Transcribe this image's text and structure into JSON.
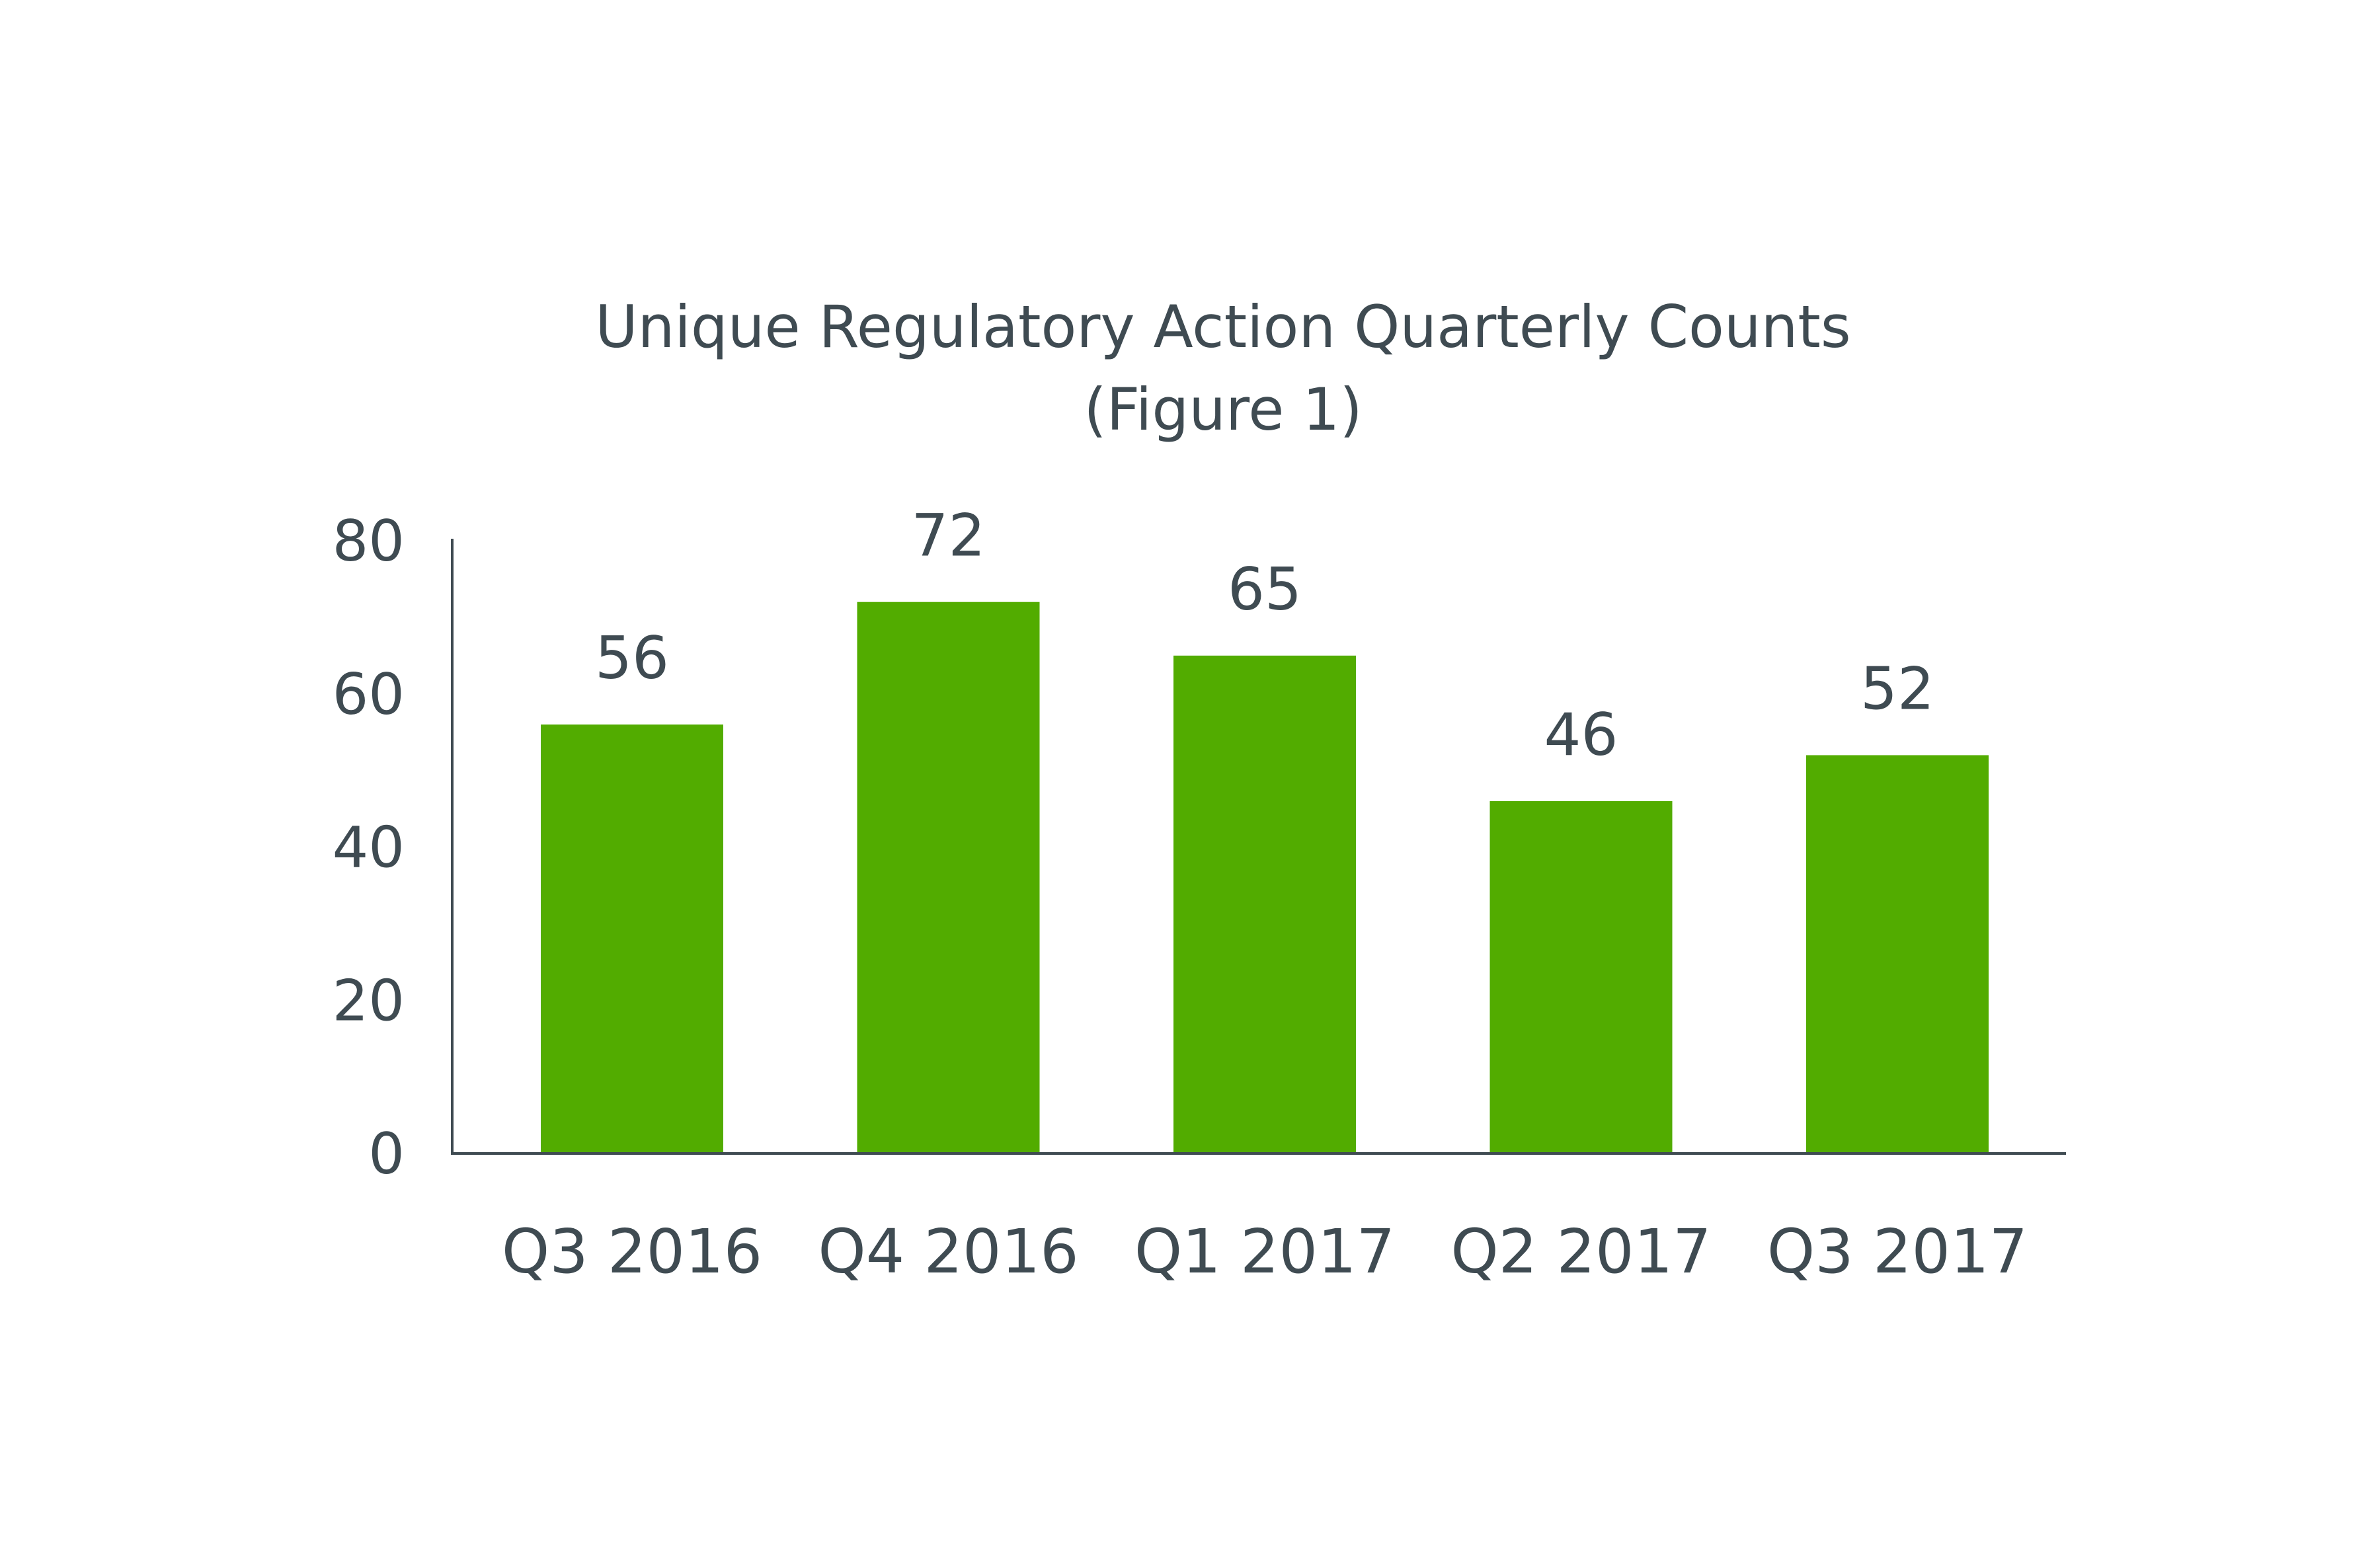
{
  "chart_data": {
    "type": "bar",
    "title": "Unique Regulatory Action Quarterly Counts",
    "subtitle": "(Figure 1)",
    "xlabel": "",
    "ylabel": "",
    "categories": [
      "Q3 2016",
      "Q4 2016",
      "Q1 2017",
      "Q2 2017",
      "Q3 2017"
    ],
    "values": [
      56,
      72,
      65,
      46,
      52
    ],
    "data_labels": [
      "56",
      "72",
      "65",
      "46",
      "52"
    ],
    "ylim": [
      0,
      80
    ],
    "yticks": [
      0,
      20,
      40,
      60,
      80
    ],
    "ytick_labels": [
      "0",
      "20",
      "40",
      "60",
      "80"
    ],
    "grid": false,
    "legend": "none",
    "colors": {
      "bar": "#52ac00",
      "text": "#3f4b52",
      "axis": "#3f4b52",
      "background": "#ffffff"
    }
  }
}
